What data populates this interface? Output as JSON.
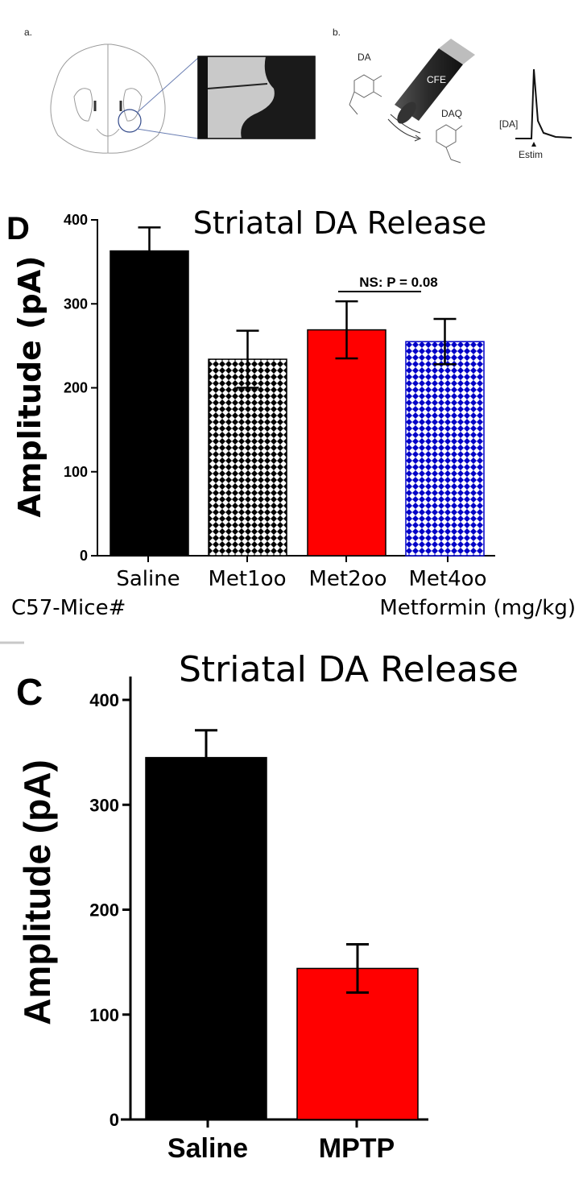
{
  "panel_a": {
    "label": "a."
  },
  "panel_b": {
    "label": "b.",
    "molecule_left": "DA",
    "molecule_right": "DAQ",
    "electrode": "CFE",
    "trace_label": "[DA]",
    "stim_label": "Estim"
  },
  "colors": {
    "black_bar": "#000000",
    "red_bar": "#ff0000",
    "blue_pattern": "#0000c8",
    "black_pattern": "#000000"
  },
  "chart_data": [
    {
      "panel": "D",
      "type": "bar",
      "title": "Striatal DA Release",
      "ylabel": "Amplitude (pA)",
      "ylim": [
        0,
        400
      ],
      "yticks": [
        0,
        100,
        200,
        300,
        400
      ],
      "categories": [
        "Saline",
        "Met100",
        "Met200",
        "Met400"
      ],
      "category_labels": [
        "Saline",
        "Met1oo",
        "Met2oo",
        "Met4oo"
      ],
      "values": [
        363,
        234,
        269,
        255
      ],
      "errors": [
        28,
        34,
        34,
        27
      ],
      "fills": [
        "solid-black",
        "checker-black",
        "solid-red",
        "checker-blue"
      ],
      "annotation": "NS: P = 0.08",
      "footer_left": "C57-Mice#",
      "footer_right": "Metformin (mg/kg)"
    },
    {
      "panel": "C",
      "type": "bar",
      "title": "Striatal DA Release",
      "ylabel": "Amplitude (pA)",
      "ylim": [
        0,
        400
      ],
      "yticks": [
        0,
        100,
        200,
        300,
        400
      ],
      "categories": [
        "Saline",
        "MPTP"
      ],
      "values": [
        345,
        144
      ],
      "errors": [
        26,
        23
      ],
      "fills": [
        "solid-black",
        "solid-red"
      ]
    }
  ]
}
